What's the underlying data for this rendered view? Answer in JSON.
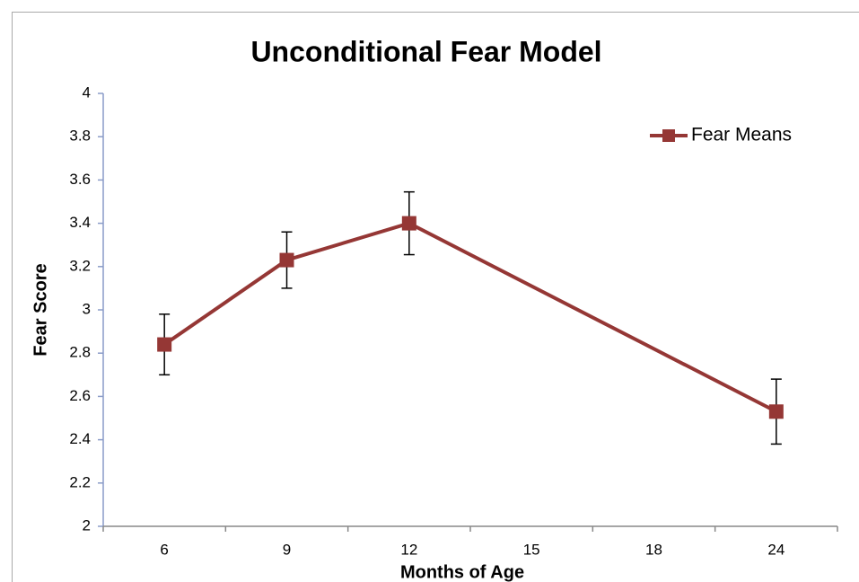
{
  "chart_data": {
    "type": "line",
    "title": "Unconditional Fear Model",
    "x_label": "Months of Age",
    "y_label": "Fear Score",
    "categories": [
      "6",
      "9",
      "12",
      "15",
      "18",
      "24"
    ],
    "series": [
      {
        "name": "Fear Means",
        "color": "#953735",
        "values": [
          2.84,
          3.23,
          3.4,
          null,
          null,
          2.53
        ],
        "errors": [
          0.14,
          0.13,
          0.145,
          null,
          null,
          0.15
        ]
      }
    ],
    "connect_gaps": true,
    "ylim": [
      2,
      4
    ],
    "yticks": [
      2,
      2.2,
      2.4,
      2.6,
      2.8,
      3,
      3.2,
      3.4,
      3.6,
      3.8,
      4
    ],
    "legend": "upper right"
  }
}
